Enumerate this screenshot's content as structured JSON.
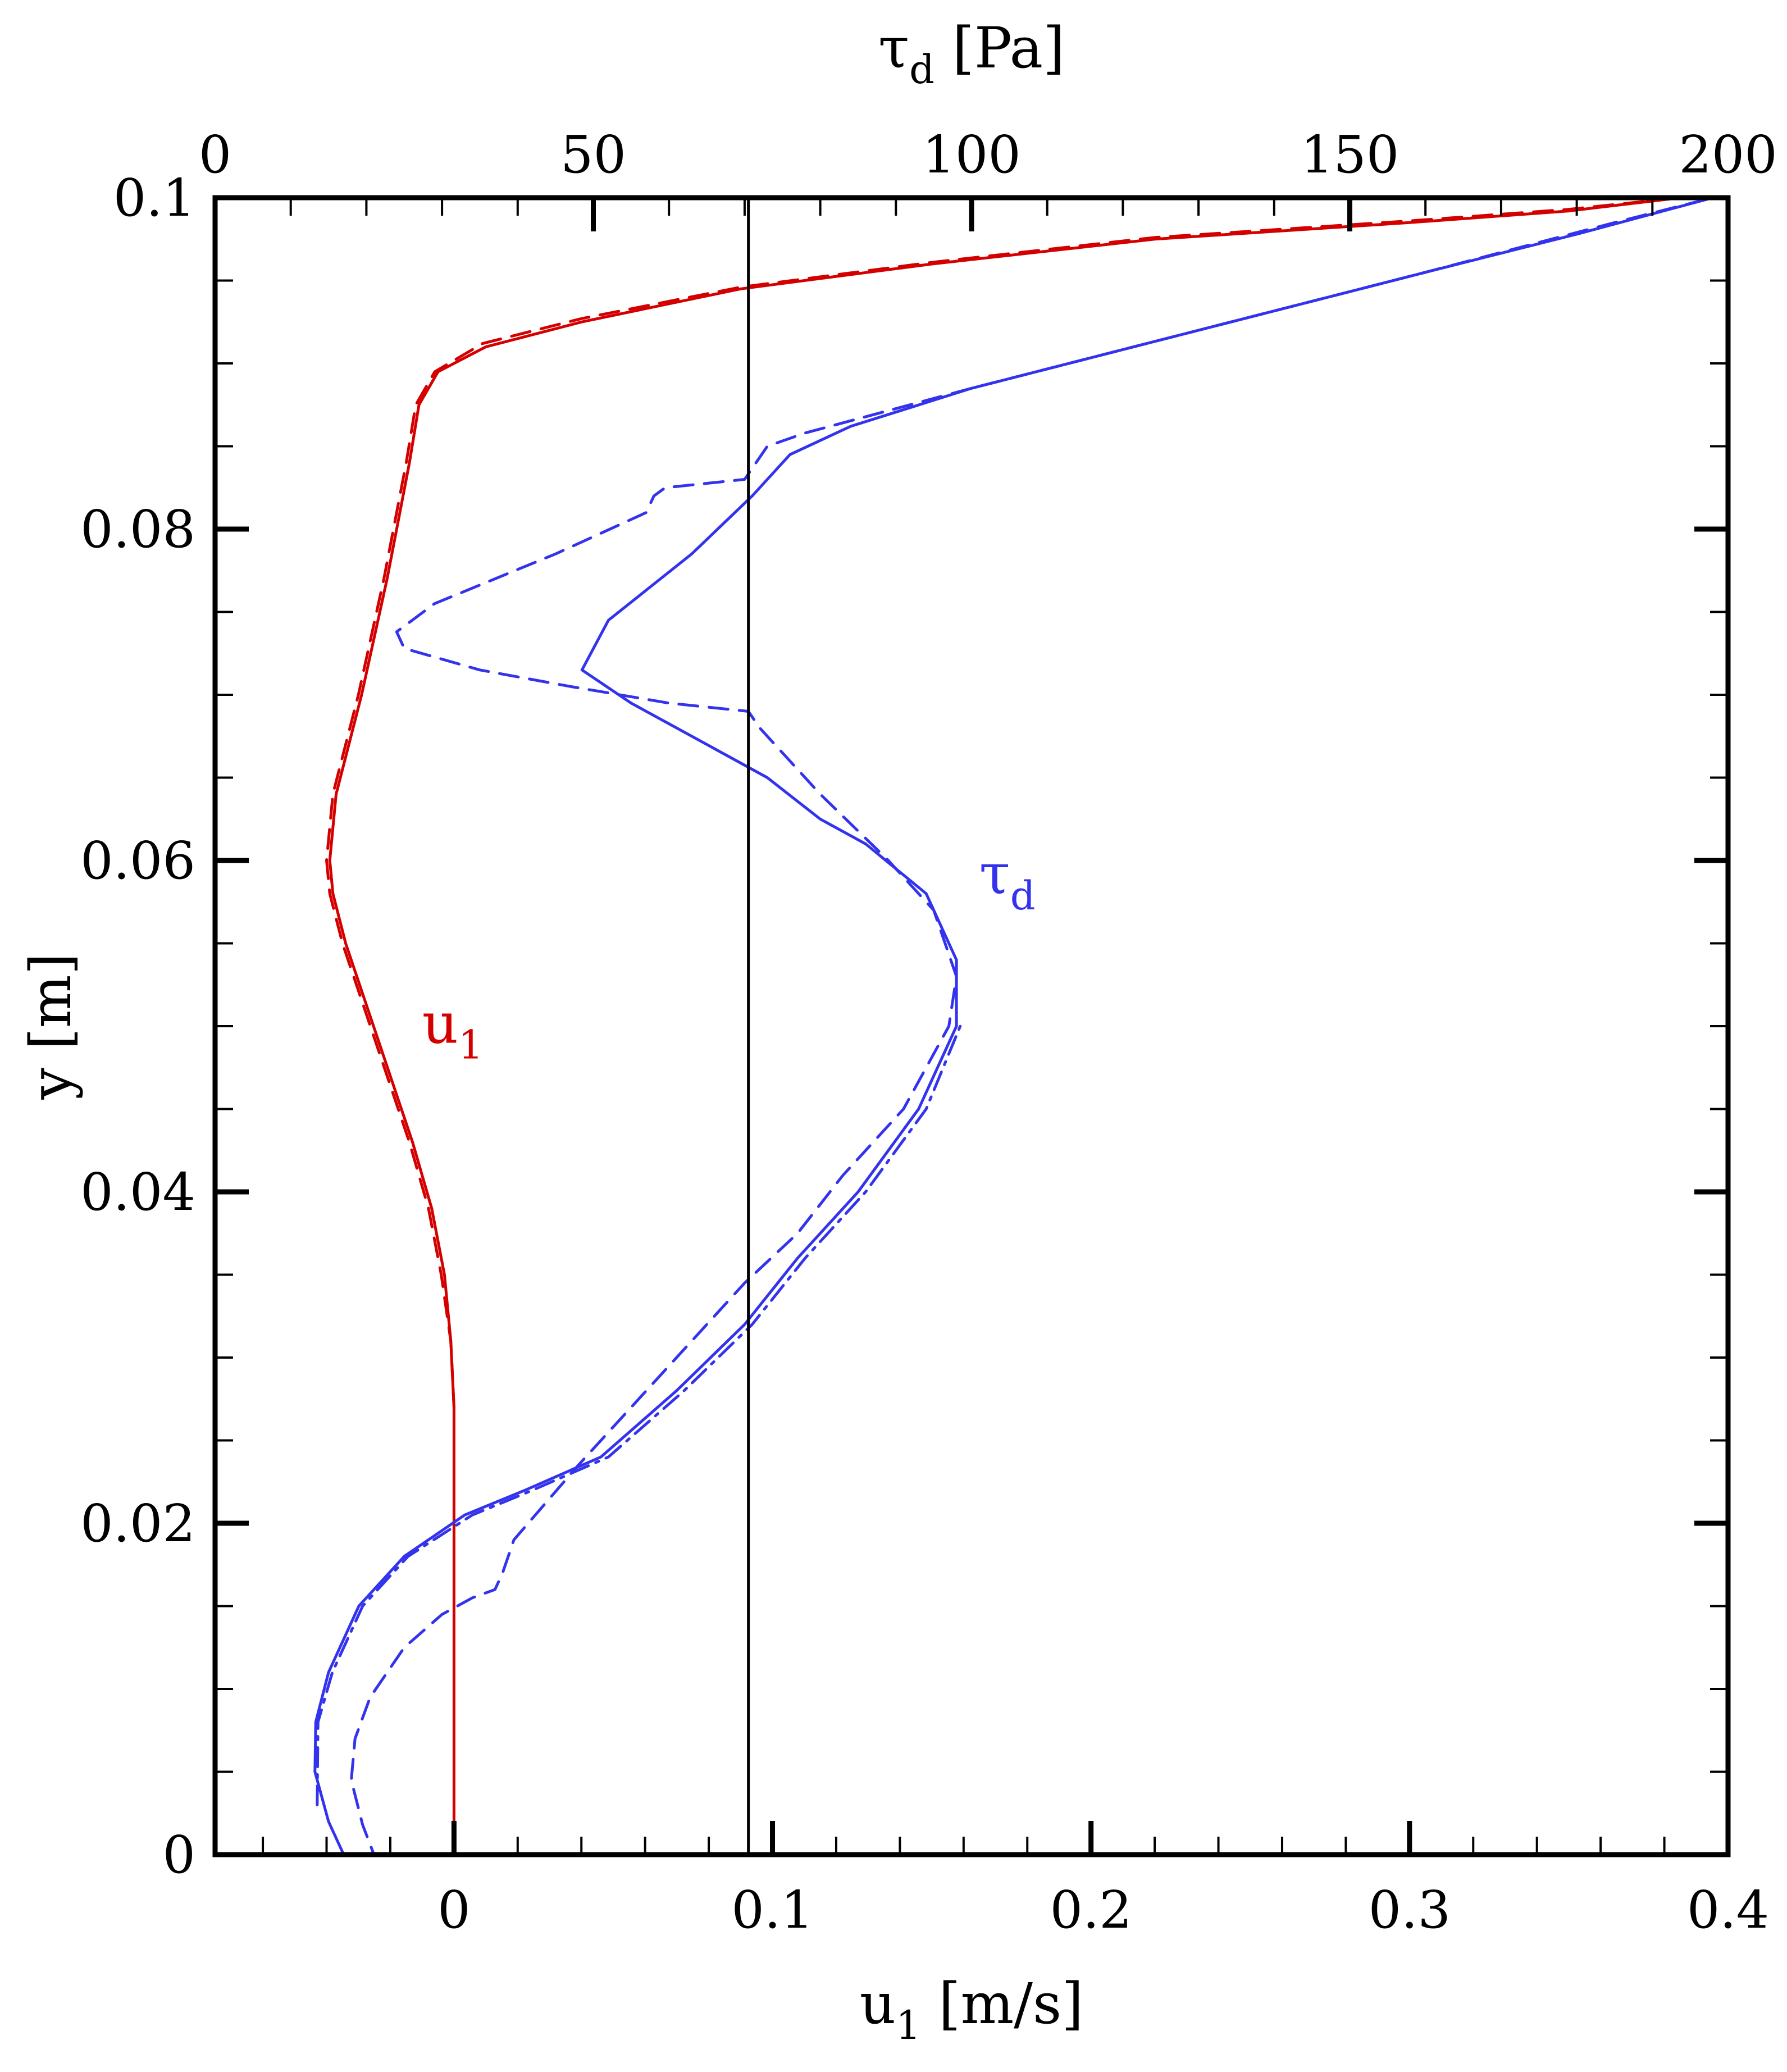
{
  "chart_data": {
    "type": "line",
    "xlabel_bottom": {
      "base": "u",
      "sub": "1",
      "unit": " [m/s]"
    },
    "xlabel_top": {
      "base": "τ",
      "sub": "d",
      "unit": " [Pa]"
    },
    "ylabel": "y [m]",
    "xlim_bottom": [
      -0.075,
      0.4
    ],
    "xlim_top": [
      0,
      200
    ],
    "ylim": [
      0,
      0.1
    ],
    "xticks_bottom": [
      {
        "value": 0,
        "label": "0"
      },
      {
        "value": 0.1,
        "label": "0.1"
      },
      {
        "value": 0.2,
        "label": "0.2"
      },
      {
        "value": 0.3,
        "label": "0.3"
      },
      {
        "value": 0.4,
        "label": "0.4"
      }
    ],
    "xticks_top": [
      {
        "value": 0,
        "label": "0"
      },
      {
        "value": 50,
        "label": "50"
      },
      {
        "value": 100,
        "label": "100"
      },
      {
        "value": 150,
        "label": "150"
      },
      {
        "value": 200,
        "label": "200"
      }
    ],
    "yticks": [
      {
        "value": 0,
        "label": "0"
      },
      {
        "value": 0.02,
        "label": "0.02"
      },
      {
        "value": 0.04,
        "label": "0.04"
      },
      {
        "value": 0.06,
        "label": "0.06"
      },
      {
        "value": 0.08,
        "label": "0.08"
      },
      {
        "value": 0.1,
        "label": "0.1"
      }
    ],
    "grid": false,
    "reference_line": {
      "axis": "top",
      "value": 70.5
    },
    "colors": {
      "u1": "#d40000",
      "tau": "#3333ee",
      "axes": "#000000"
    },
    "labels": {
      "u1": {
        "base": "u",
        "sub": "1",
        "anchor": {
          "axis": "bottom",
          "x": -0.01,
          "y": 0.049
        }
      },
      "tau": {
        "base": "τ",
        "sub": "d",
        "anchor": {
          "axis": "top",
          "x": 101,
          "y": 0.058
        }
      }
    },
    "series": [
      {
        "key": "u1",
        "axis": "bottom",
        "style": "solid",
        "points": [
          [
            0,
            0
          ],
          [
            0,
            0.01
          ],
          [
            0,
            0.02
          ],
          [
            0,
            0.027
          ],
          [
            -0.001,
            0.031
          ],
          [
            -0.003,
            0.035
          ],
          [
            -0.007,
            0.039
          ],
          [
            -0.013,
            0.043
          ],
          [
            -0.02,
            0.047
          ],
          [
            -0.027,
            0.051
          ],
          [
            -0.034,
            0.055
          ],
          [
            -0.038,
            0.058
          ],
          [
            -0.039,
            0.06
          ],
          [
            -0.037,
            0.064
          ],
          [
            -0.029,
            0.07
          ],
          [
            -0.021,
            0.077
          ],
          [
            -0.014,
            0.084
          ],
          [
            -0.011,
            0.0875
          ],
          [
            -0.005,
            0.0895
          ],
          [
            0.01,
            0.091
          ],
          [
            0.04,
            0.0925
          ],
          [
            0.09,
            0.0945
          ],
          [
            0.15,
            0.096
          ],
          [
            0.22,
            0.0975
          ],
          [
            0.3,
            0.0985
          ],
          [
            0.35,
            0.0992
          ],
          [
            0.385,
            0.1
          ]
        ]
      },
      {
        "key": "u1",
        "axis": "bottom",
        "style": "dashed",
        "points": [
          [
            0,
            0.027
          ],
          [
            -0.001,
            0.031
          ],
          [
            -0.004,
            0.035
          ],
          [
            -0.008,
            0.039
          ],
          [
            -0.014,
            0.043
          ],
          [
            -0.021,
            0.047
          ],
          [
            -0.028,
            0.051
          ],
          [
            -0.035,
            0.055
          ],
          [
            -0.039,
            0.058
          ],
          [
            -0.04,
            0.06
          ],
          [
            -0.038,
            0.064
          ],
          [
            -0.03,
            0.07
          ],
          [
            -0.022,
            0.077
          ],
          [
            -0.015,
            0.084
          ],
          [
            -0.012,
            0.0875
          ],
          [
            -0.006,
            0.0895
          ],
          [
            0.009,
            0.0912
          ],
          [
            0.04,
            0.0927
          ],
          [
            0.09,
            0.0946
          ],
          [
            0.15,
            0.0961
          ],
          [
            0.22,
            0.0976
          ],
          [
            0.3,
            0.0986
          ],
          [
            0.35,
            0.0993
          ],
          [
            0.385,
            0.1
          ]
        ]
      },
      {
        "key": "tau",
        "axis": "top",
        "style": "solid",
        "points": [
          [
            7.5,
            0
          ],
          [
            17,
            0
          ],
          [
            15,
            0.002
          ],
          [
            13.2,
            0.005
          ],
          [
            13.3,
            0.008
          ],
          [
            15,
            0.011
          ],
          [
            19,
            0.015
          ],
          [
            25,
            0.018
          ],
          [
            33,
            0.0205
          ],
          [
            41,
            0.022
          ],
          [
            51,
            0.024
          ],
          [
            61,
            0.028
          ],
          [
            70,
            0.032
          ],
          [
            77,
            0.036
          ],
          [
            85,
            0.04
          ],
          [
            93,
            0.045
          ],
          [
            98,
            0.05
          ],
          [
            98,
            0.054
          ],
          [
            94,
            0.058
          ],
          [
            86,
            0.061
          ],
          [
            80,
            0.0625
          ],
          [
            73,
            0.065
          ],
          [
            63,
            0.0675
          ],
          [
            55,
            0.0695
          ],
          [
            48.5,
            0.0715
          ],
          [
            52,
            0.0745
          ],
          [
            63,
            0.0785
          ],
          [
            71,
            0.082
          ],
          [
            76,
            0.0845
          ],
          [
            84,
            0.0862
          ],
          [
            100,
            0.0885
          ],
          [
            130,
            0.092
          ],
          [
            160,
            0.0955
          ],
          [
            180,
            0.0978
          ],
          [
            198,
            0.1
          ]
        ]
      },
      {
        "key": "tau",
        "axis": "top",
        "style": "dashed",
        "points": [
          [
            7.5,
            0
          ],
          [
            21,
            0
          ],
          [
            19.5,
            0.0018
          ],
          [
            18,
            0.0045
          ],
          [
            18.5,
            0.007
          ],
          [
            20.5,
            0.0095
          ],
          [
            25,
            0.0125
          ],
          [
            30,
            0.0145
          ],
          [
            34,
            0.0155
          ],
          [
            37,
            0.016
          ],
          [
            38,
            0.017
          ],
          [
            39.5,
            0.019
          ],
          [
            48,
            0.0235
          ],
          [
            60,
            0.0295
          ],
          [
            70,
            0.0345
          ],
          [
            77,
            0.0375
          ],
          [
            83,
            0.041
          ],
          [
            91,
            0.045
          ],
          [
            97,
            0.05
          ],
          [
            98,
            0.053
          ],
          [
            95,
            0.057
          ],
          [
            89,
            0.06
          ],
          [
            80,
            0.064
          ],
          [
            76,
            0.066
          ],
          [
            72,
            0.068
          ],
          [
            70.5,
            0.069
          ],
          [
            60,
            0.0695
          ],
          [
            47,
            0.0705
          ],
          [
            35,
            0.0715
          ],
          [
            25,
            0.0728
          ],
          [
            24,
            0.0738
          ],
          [
            29,
            0.0755
          ],
          [
            45,
            0.0785
          ],
          [
            57,
            0.081
          ],
          [
            58,
            0.082
          ],
          [
            59.5,
            0.0825
          ],
          [
            70,
            0.083
          ],
          [
            73,
            0.085
          ],
          [
            78,
            0.0858
          ],
          [
            100,
            0.0885
          ],
          [
            130,
            0.092
          ],
          [
            160,
            0.0955
          ],
          [
            185,
            0.0985
          ],
          [
            198,
            0.1
          ]
        ]
      },
      {
        "key": "tau",
        "axis": "top",
        "style": "dashdot",
        "points": [
          [
            13.5,
            0.003
          ],
          [
            13.6,
            0.008
          ],
          [
            15.5,
            0.011
          ],
          [
            19.5,
            0.015
          ],
          [
            25.5,
            0.018
          ],
          [
            34,
            0.0205
          ],
          [
            42,
            0.022
          ],
          [
            52,
            0.024
          ],
          [
            62,
            0.028
          ],
          [
            71,
            0.032
          ],
          [
            78,
            0.036
          ],
          [
            86,
            0.04
          ],
          [
            94,
            0.045
          ],
          [
            98.5,
            0.05
          ]
        ]
      }
    ]
  }
}
